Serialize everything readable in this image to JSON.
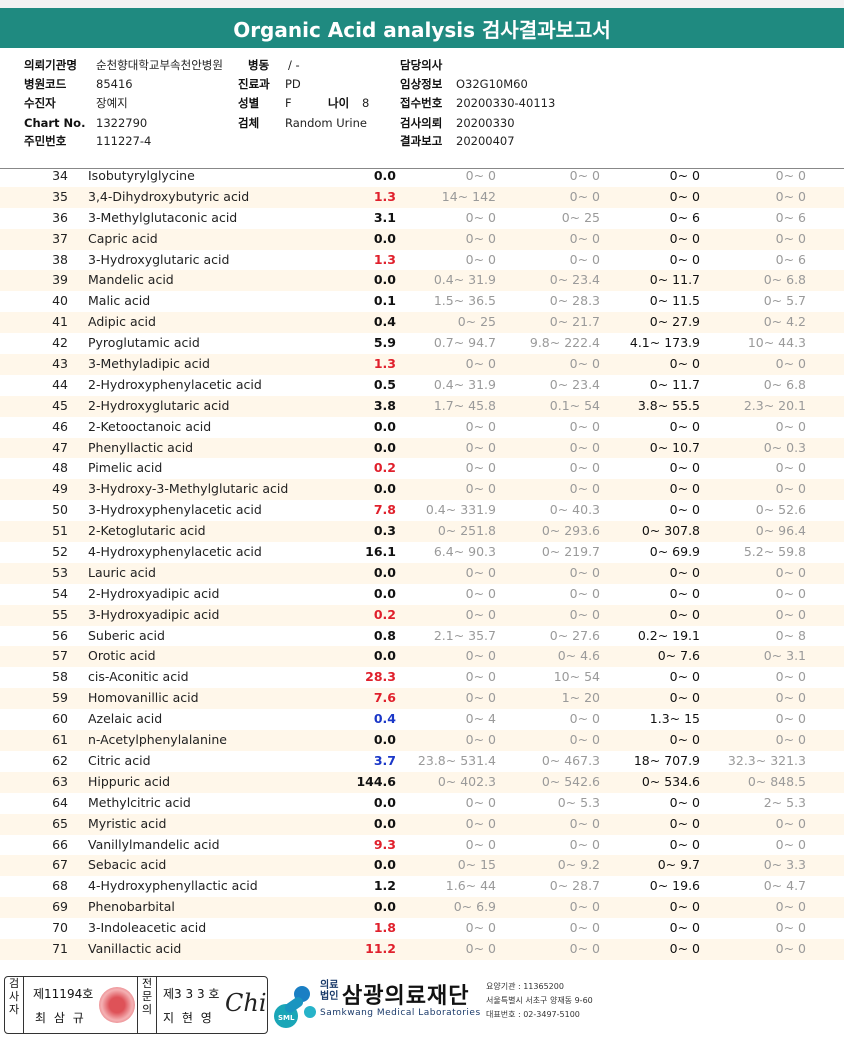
{
  "header": {
    "title": "Organic Acid analysis 검사결과보고서"
  },
  "info": {
    "left": [
      {
        "label": "의뢰기관명",
        "value": "순천향대학교부속천안병원"
      },
      {
        "label": "병원코드",
        "value": "85416"
      },
      {
        "label": "수진자",
        "value": "장예지"
      },
      {
        "label": "Chart No.",
        "value": "1322790"
      },
      {
        "label": "주민번호",
        "value": "111227-4"
      }
    ],
    "middle": [
      {
        "label": "병동",
        "value": "/ -"
      },
      {
        "label": "진료과",
        "value": "PD"
      },
      {
        "label": "성별",
        "value": "F"
      },
      {
        "label": "검체",
        "value": "Random Urine"
      }
    ],
    "age": {
      "label": "나이",
      "value": "8"
    },
    "right": [
      {
        "label": "담당의사",
        "value": ""
      },
      {
        "label": "임상정보",
        "value": "O32G10M60"
      },
      {
        "label": "접수번호",
        "value": "20200330-40113"
      },
      {
        "label": "검사의뢰",
        "value": "20200330"
      },
      {
        "label": "결과보고",
        "value": "20200407"
      }
    ]
  },
  "results": [
    {
      "no": "34",
      "name": "Isobutyrylglycine",
      "result": "0.0",
      "flag": "normal",
      "r1": "0~ 0",
      "r2": "0~ 0",
      "r3": "0~ 0",
      "r4": "0~ 0"
    },
    {
      "no": "35",
      "name": "3,4-Dihydroxybutyric acid",
      "result": "1.3",
      "flag": "high",
      "r1": "14~ 142",
      "r2": "0~ 0",
      "r3": "0~ 0",
      "r4": "0~ 0"
    },
    {
      "no": "36",
      "name": "3-Methylglutaconic acid",
      "result": "3.1",
      "flag": "normal",
      "r1": "0~ 0",
      "r2": "0~ 25",
      "r3": "0~ 6",
      "r4": "0~ 6"
    },
    {
      "no": "37",
      "name": "Capric acid",
      "result": "0.0",
      "flag": "normal",
      "r1": "0~ 0",
      "r2": "0~ 0",
      "r3": "0~ 0",
      "r4": "0~ 0"
    },
    {
      "no": "38",
      "name": "3-Hydroxyglutaric acid",
      "result": "1.3",
      "flag": "high",
      "r1": "0~ 0",
      "r2": "0~ 0",
      "r3": "0~ 0",
      "r4": "0~ 6"
    },
    {
      "no": "39",
      "name": "Mandelic acid",
      "result": "0.0",
      "flag": "normal",
      "r1": "0.4~ 31.9",
      "r2": "0~ 23.4",
      "r3": "0~ 11.7",
      "r4": "0~ 6.8"
    },
    {
      "no": "40",
      "name": "Malic acid",
      "result": "0.1",
      "flag": "normal",
      "r1": "1.5~ 36.5",
      "r2": "0~ 28.3",
      "r3": "0~ 11.5",
      "r4": "0~ 5.7"
    },
    {
      "no": "41",
      "name": "Adipic acid",
      "result": "0.4",
      "flag": "normal",
      "r1": "0~ 25",
      "r2": "0~ 21.7",
      "r3": "0~ 27.9",
      "r4": "0~ 4.2"
    },
    {
      "no": "42",
      "name": "Pyroglutamic acid",
      "result": "5.9",
      "flag": "normal",
      "r1": "0.7~ 94.7",
      "r2": "9.8~ 222.4",
      "r3": "4.1~ 173.9",
      "r4": "10~ 44.3"
    },
    {
      "no": "43",
      "name": "3-Methyladipic acid",
      "result": "1.3",
      "flag": "high",
      "r1": "0~ 0",
      "r2": "0~ 0",
      "r3": "0~ 0",
      "r4": "0~ 0"
    },
    {
      "no": "44",
      "name": "2-Hydroxyphenylacetic acid",
      "result": "0.5",
      "flag": "normal",
      "r1": "0.4~ 31.9",
      "r2": "0~ 23.4",
      "r3": "0~ 11.7",
      "r4": "0~ 6.8"
    },
    {
      "no": "45",
      "name": "2-Hydroxyglutaric acid",
      "result": "3.8",
      "flag": "normal",
      "r1": "1.7~ 45.8",
      "r2": "0.1~ 54",
      "r3": "3.8~ 55.5",
      "r4": "2.3~ 20.1"
    },
    {
      "no": "46",
      "name": "2-Ketooctanoic acid",
      "result": "0.0",
      "flag": "normal",
      "r1": "0~ 0",
      "r2": "0~ 0",
      "r3": "0~ 0",
      "r4": "0~ 0"
    },
    {
      "no": "47",
      "name": "Phenyllactic acid",
      "result": "0.0",
      "flag": "normal",
      "r1": "0~ 0",
      "r2": "0~ 0",
      "r3": "0~ 10.7",
      "r4": "0~ 0.3"
    },
    {
      "no": "48",
      "name": "Pimelic acid",
      "result": "0.2",
      "flag": "high",
      "r1": "0~ 0",
      "r2": "0~ 0",
      "r3": "0~ 0",
      "r4": "0~ 0"
    },
    {
      "no": "49",
      "name": "3-Hydroxy-3-Methylglutaric acid",
      "result": "0.0",
      "flag": "normal",
      "r1": "0~ 0",
      "r2": "0~ 0",
      "r3": "0~ 0",
      "r4": "0~ 0"
    },
    {
      "no": "50",
      "name": "3-Hydroxyphenylacetic acid",
      "result": "7.8",
      "flag": "high",
      "r1": "0.4~ 331.9",
      "r2": "0~ 40.3",
      "r3": "0~ 0",
      "r4": "0~ 52.6"
    },
    {
      "no": "51",
      "name": "2-Ketoglutaric acid",
      "result": "0.3",
      "flag": "normal",
      "r1": "0~ 251.8",
      "r2": "0~ 293.6",
      "r3": "0~ 307.8",
      "r4": "0~ 96.4"
    },
    {
      "no": "52",
      "name": "4-Hydroxyphenylacetic acid",
      "result": "16.1",
      "flag": "normal",
      "r1": "6.4~ 90.3",
      "r2": "0~ 219.7",
      "r3": "0~ 69.9",
      "r4": "5.2~ 59.8"
    },
    {
      "no": "53",
      "name": "Lauric acid",
      "result": "0.0",
      "flag": "normal",
      "r1": "0~ 0",
      "r2": "0~ 0",
      "r3": "0~ 0",
      "r4": "0~ 0"
    },
    {
      "no": "54",
      "name": "2-Hydroxyadipic acid",
      "result": "0.0",
      "flag": "normal",
      "r1": "0~ 0",
      "r2": "0~ 0",
      "r3": "0~ 0",
      "r4": "0~ 0"
    },
    {
      "no": "55",
      "name": "3-Hydroxyadipic acid",
      "result": "0.2",
      "flag": "high",
      "r1": "0~ 0",
      "r2": "0~ 0",
      "r3": "0~ 0",
      "r4": "0~ 0"
    },
    {
      "no": "56",
      "name": "Suberic acid",
      "result": "0.8",
      "flag": "normal",
      "r1": "2.1~ 35.7",
      "r2": "0~ 27.6",
      "r3": "0.2~ 19.1",
      "r4": "0~ 8"
    },
    {
      "no": "57",
      "name": "Orotic acid",
      "result": "0.0",
      "flag": "normal",
      "r1": "0~ 0",
      "r2": "0~ 4.6",
      "r3": "0~ 7.6",
      "r4": "0~ 3.1"
    },
    {
      "no": "58",
      "name": "cis-Aconitic acid",
      "result": "28.3",
      "flag": "high",
      "r1": "0~ 0",
      "r2": "10~ 54",
      "r3": "0~ 0",
      "r4": "0~ 0"
    },
    {
      "no": "59",
      "name": "Homovanillic acid",
      "result": "7.6",
      "flag": "high",
      "r1": "0~ 0",
      "r2": "1~ 20",
      "r3": "0~ 0",
      "r4": "0~ 0"
    },
    {
      "no": "60",
      "name": "Azelaic acid",
      "result": "0.4",
      "flag": "low",
      "r1": "0~ 4",
      "r2": "0~ 0",
      "r3": "1.3~ 15",
      "r4": "0~ 0"
    },
    {
      "no": "61",
      "name": "n-Acetylphenylalanine",
      "result": "0.0",
      "flag": "normal",
      "r1": "0~ 0",
      "r2": "0~ 0",
      "r3": "0~ 0",
      "r4": "0~ 0"
    },
    {
      "no": "62",
      "name": "Citric acid",
      "result": "3.7",
      "flag": "low",
      "r1": "23.8~ 531.4",
      "r2": "0~ 467.3",
      "r3": "18~ 707.9",
      "r4": "32.3~ 321.3"
    },
    {
      "no": "63",
      "name": "Hippuric acid",
      "result": "144.6",
      "flag": "normal",
      "r1": "0~ 402.3",
      "r2": "0~ 542.6",
      "r3": "0~ 534.6",
      "r4": "0~ 848.5"
    },
    {
      "no": "64",
      "name": "Methylcitric acid",
      "result": "0.0",
      "flag": "normal",
      "r1": "0~ 0",
      "r2": "0~ 5.3",
      "r3": "0~ 0",
      "r4": "2~ 5.3"
    },
    {
      "no": "65",
      "name": "Myristic acid",
      "result": "0.0",
      "flag": "normal",
      "r1": "0~ 0",
      "r2": "0~ 0",
      "r3": "0~ 0",
      "r4": "0~ 0"
    },
    {
      "no": "66",
      "name": "Vanillylmandelic acid",
      "result": "9.3",
      "flag": "high",
      "r1": "0~ 0",
      "r2": "0~ 0",
      "r3": "0~ 0",
      "r4": "0~ 0"
    },
    {
      "no": "67",
      "name": "Sebacic acid",
      "result": "0.0",
      "flag": "normal",
      "r1": "0~ 15",
      "r2": "0~ 9.2",
      "r3": "0~ 9.7",
      "r4": "0~ 3.3"
    },
    {
      "no": "68",
      "name": "4-Hydroxyphenyllactic acid",
      "result": "1.2",
      "flag": "normal",
      "r1": "1.6~ 44",
      "r2": "0~ 28.7",
      "r3": "0~ 19.6",
      "r4": "0~ 4.7"
    },
    {
      "no": "69",
      "name": "Phenobarbital",
      "result": "0.0",
      "flag": "normal",
      "r1": "0~ 6.9",
      "r2": "0~ 0",
      "r3": "0~ 0",
      "r4": "0~ 0"
    },
    {
      "no": "70",
      "name": "3-Indoleacetic acid",
      "result": "1.8",
      "flag": "high",
      "r1": "0~ 0",
      "r2": "0~ 0",
      "r3": "0~ 0",
      "r4": "0~ 0"
    },
    {
      "no": "71",
      "name": "Vanillactic acid",
      "result": "11.2",
      "flag": "high",
      "r1": "0~ 0",
      "r2": "0~ 0",
      "r3": "0~ 0",
      "r4": "0~ 0"
    }
  ],
  "footer": {
    "examiner_label": [
      "검",
      "사",
      "자"
    ],
    "examiner_license": "제11194호",
    "examiner_name": "최 삼 규",
    "specialist_label": [
      "전",
      "문",
      "의"
    ],
    "specialist_license": "제3 3 3 호",
    "specialist_name": "지 현 영",
    "signature": "Chi",
    "logo_text": "SML",
    "org_type": [
      "의료",
      "법인"
    ],
    "org_name": "삼광의료재단",
    "org_en": "Samkwang Medical Laboratories",
    "contact": [
      "요양기관 : 11365200",
      "서울특별시 서초구 양재동 9-60",
      "대표번호 : 02-3497-5100"
    ]
  },
  "colors": {
    "header_bg": "#1f8a80",
    "high_flag": "#e0202c",
    "low_flag": "#1a37c8",
    "row_alt": "#fff7ea",
    "range_text": "#9a9a9a"
  }
}
